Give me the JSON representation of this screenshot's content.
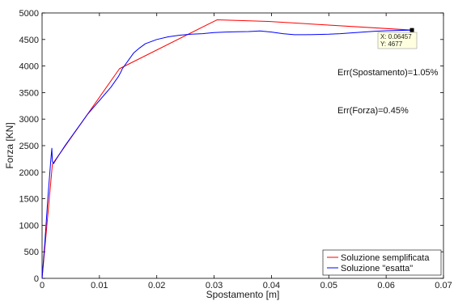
{
  "chart_data": {
    "type": "line",
    "xlabel": "Spostamento [m]",
    "ylabel": "Forza [KN]",
    "xlim": [
      0,
      0.07
    ],
    "ylim": [
      0,
      5000
    ],
    "x_ticks": [
      "0",
      "0.01",
      "0.02",
      "0.03",
      "0.04",
      "0.05",
      "0.06",
      "0.07"
    ],
    "y_ticks": [
      "0",
      "500",
      "1000",
      "1500",
      "2000",
      "2500",
      "3000",
      "3500",
      "4000",
      "4500",
      "5000"
    ],
    "grid": false,
    "legend_position": "bottom-right",
    "series": [
      {
        "name": "Soluzione semplificata",
        "color": "#ff0000",
        "x": [
          0,
          0.0018,
          0.0135,
          0.0305,
          0.0395,
          0.0645
        ],
        "y": [
          0,
          2150,
          3950,
          4870,
          4840,
          4677
        ]
      },
      {
        "name": "Soluzione \"esatta\"",
        "color": "#0000ff",
        "x": [
          0,
          0.0005,
          0.001,
          0.0015,
          0.0017,
          0.0018,
          0.002,
          0.0025,
          0.004,
          0.006,
          0.008,
          0.01,
          0.012,
          0.0133,
          0.0138,
          0.014,
          0.015,
          0.016,
          0.017,
          0.018,
          0.02,
          0.022,
          0.024,
          0.026,
          0.028,
          0.03,
          0.032,
          0.034,
          0.036,
          0.038,
          0.04,
          0.042,
          0.044,
          0.046,
          0.048,
          0.05,
          0.052,
          0.054,
          0.056,
          0.058,
          0.06,
          0.062,
          0.0645
        ],
        "y": [
          0,
          700,
          1500,
          2200,
          2450,
          2200,
          2160,
          2250,
          2500,
          2800,
          3100,
          3350,
          3600,
          3800,
          3900,
          3950,
          4100,
          4250,
          4340,
          4420,
          4500,
          4550,
          4580,
          4600,
          4610,
          4630,
          4640,
          4645,
          4650,
          4660,
          4640,
          4610,
          4590,
          4590,
          4595,
          4600,
          4610,
          4625,
          4640,
          4655,
          4665,
          4670,
          4677
        ]
      }
    ],
    "datatip": {
      "x": 0.0645,
      "y": 4677,
      "line1": "X: 0.06457",
      "line2": "Y: 4677"
    },
    "annotations": [
      {
        "text": "Err(Spostamento)=1.05%",
        "x": 0.047,
        "y": 3900
      },
      {
        "text": "Err(Forza)=0.45%",
        "x": 0.047,
        "y": 3150
      }
    ]
  }
}
